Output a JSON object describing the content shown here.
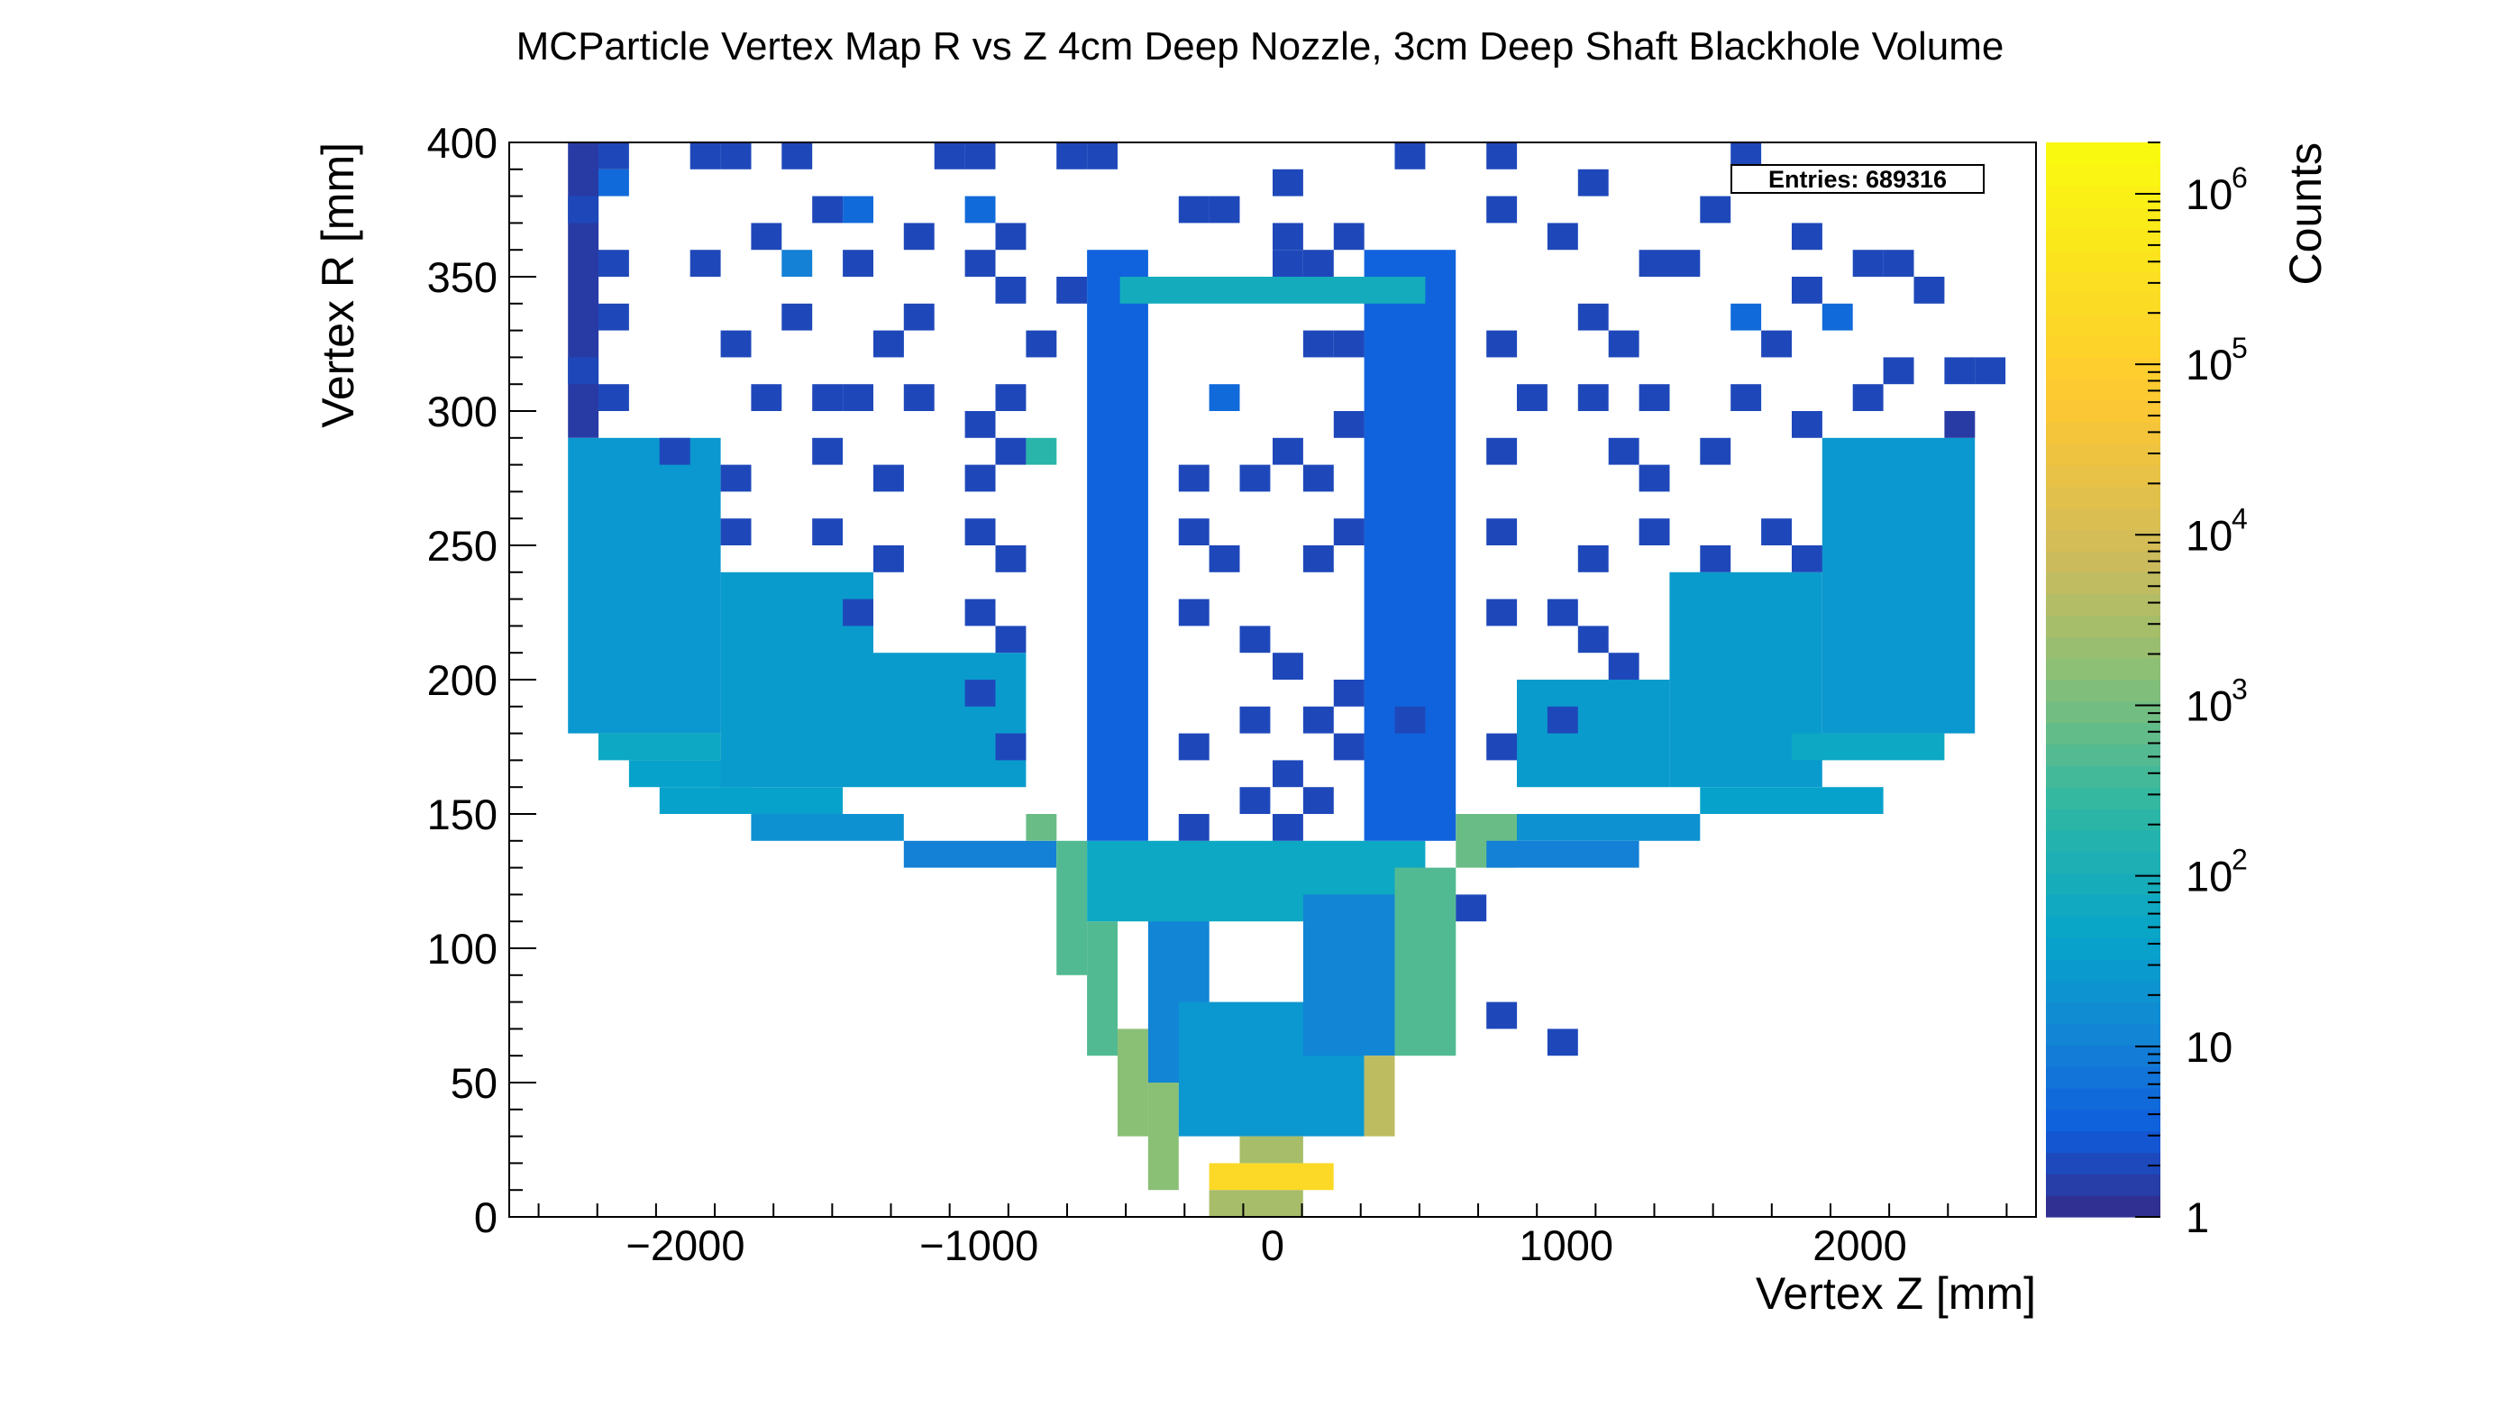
{
  "chart_data": {
    "type": "heatmap",
    "title": "MCParticle Vertex Map R vs Z 4cm Deep Nozzle, 3cm Deep Shaft Blackhole Volume",
    "xlabel": "Vertex Z [mm]",
    "ylabel": "Vertex R [mm]",
    "colorbar_label": "Counts",
    "colorbar_scale": "log",
    "zlim": [
      1,
      2000000
    ],
    "colorbar_ticks": [
      {
        "value": 1,
        "label": "1"
      },
      {
        "value": 10,
        "label": "10"
      },
      {
        "value": 100,
        "label": "10",
        "exp": "2"
      },
      {
        "value": 1000,
        "label": "10",
        "exp": "3"
      },
      {
        "value": 10000,
        "label": "10",
        "exp": "4"
      },
      {
        "value": 100000,
        "label": "10",
        "exp": "5"
      },
      {
        "value": 1000000,
        "label": "10",
        "exp": "6"
      }
    ],
    "xlim": [
      -2600,
      2600
    ],
    "ylim": [
      0,
      400
    ],
    "xticks": [
      {
        "value": -2000,
        "label": "−2000"
      },
      {
        "value": -1000,
        "label": "−1000"
      },
      {
        "value": 0,
        "label": "0"
      },
      {
        "value": 1000,
        "label": "1000"
      },
      {
        "value": 2000,
        "label": "2000"
      }
    ],
    "yticks": [
      {
        "value": 0,
        "label": "0"
      },
      {
        "value": 50,
        "label": "50"
      },
      {
        "value": 100,
        "label": "100"
      },
      {
        "value": 150,
        "label": "150"
      },
      {
        "value": 200,
        "label": "200"
      },
      {
        "value": 250,
        "label": "250"
      },
      {
        "value": 300,
        "label": "300"
      },
      {
        "value": 350,
        "label": "350"
      },
      {
        "value": 400,
        "label": "400"
      }
    ],
    "stats": {
      "label": "Entries: 689316",
      "entries": 689316
    },
    "bin_width_z": 104,
    "bin_height_r": 10,
    "grid": false,
    "regions": [
      {
        "z": [
          -2400,
          -2296
        ],
        "r": [
          290,
          400
        ],
        "count": 1.5
      },
      {
        "z": [
          -2400,
          -1880
        ],
        "r": [
          180,
          290
        ],
        "count": 25
      },
      {
        "z": [
          -2296,
          -1880
        ],
        "r": [
          170,
          180
        ],
        "count": 60
      },
      {
        "z": [
          -2192,
          -1776
        ],
        "r": [
          160,
          170
        ],
        "count": 40
      },
      {
        "z": [
          -2088,
          -1464
        ],
        "r": [
          150,
          160
        ],
        "count": 40
      },
      {
        "z": [
          -1880,
          -1360
        ],
        "r": [
          160,
          240
        ],
        "count": 30
      },
      {
        "z": [
          -1776,
          -1256
        ],
        "r": [
          140,
          150
        ],
        "count": 20
      },
      {
        "z": [
          -1360,
          -840
        ],
        "r": [
          160,
          210
        ],
        "count": 30
      },
      {
        "z": [
          -1256,
          -736
        ],
        "r": [
          130,
          140
        ],
        "count": 10
      },
      {
        "z": [
          -840,
          -736
        ],
        "r": [
          140,
          150
        ],
        "count": 800
      },
      {
        "z": [
          -736,
          -632
        ],
        "r": [
          90,
          140
        ],
        "count": 500
      },
      {
        "z": [
          -632,
          -528
        ],
        "r": [
          60,
          110
        ],
        "count": 500
      },
      {
        "z": [
          -528,
          -424
        ],
        "r": [
          30,
          70
        ],
        "count": 1500
      },
      {
        "z": [
          -424,
          -320
        ],
        "r": [
          10,
          50
        ],
        "count": 1500
      },
      {
        "z": [
          -424,
          -216
        ],
        "r": [
          50,
          120
        ],
        "count": 12
      },
      {
        "z": [
          -632,
          520
        ],
        "r": [
          110,
          140
        ],
        "count": 60
      },
      {
        "z": [
          -320,
          312
        ],
        "r": [
          30,
          80
        ],
        "count": 25
      },
      {
        "z": [
          -216,
          208
        ],
        "r": [
          10,
          20
        ],
        "count": 200000
      },
      {
        "z": [
          -216,
          104
        ],
        "r": [
          0,
          10
        ],
        "count": 3000
      },
      {
        "z": [
          -112,
          104
        ],
        "r": [
          20,
          30
        ],
        "count": 3000
      },
      {
        "z": [
          104,
          416
        ],
        "r": [
          60,
          120
        ],
        "count": 12
      },
      {
        "z": [
          312,
          416
        ],
        "r": [
          30,
          60
        ],
        "count": 5000
      },
      {
        "z": [
          416,
          624
        ],
        "r": [
          60,
          130
        ],
        "count": 500
      },
      {
        "z": [
          624,
          832
        ],
        "r": [
          130,
          150
        ],
        "count": 800
      },
      {
        "z": [
          728,
          1248
        ],
        "r": [
          130,
          140
        ],
        "count": 10
      },
      {
        "z": [
          832,
          1456
        ],
        "r": [
          140,
          150
        ],
        "count": 20
      },
      {
        "z": [
          832,
          1352
        ],
        "r": [
          160,
          200
        ],
        "count": 30
      },
      {
        "z": [
          1352,
          1872
        ],
        "r": [
          160,
          240
        ],
        "count": 30
      },
      {
        "z": [
          1456,
          2080
        ],
        "r": [
          150,
          160
        ],
        "count": 40
      },
      {
        "z": [
          1768,
          2288
        ],
        "r": [
          170,
          180
        ],
        "count": 60
      },
      {
        "z": [
          1872,
          2392
        ],
        "r": [
          180,
          290
        ],
        "count": 25
      },
      {
        "z": [
          2288,
          2392
        ],
        "r": [
          290,
          300
        ],
        "count": 1.5
      },
      {
        "z": [
          -632,
          -424
        ],
        "r": [
          140,
          360
        ],
        "count": 4
      },
      {
        "z": [
          312,
          624
        ],
        "r": [
          140,
          360
        ],
        "count": 4
      },
      {
        "z": [
          -520,
          520
        ],
        "r": [
          340,
          350
        ],
        "count": 80
      },
      {
        "z": [
          -2296,
          -2192
        ],
        "r": [
          380,
          390
        ],
        "count": 5
      },
      {
        "z": [
          -1672,
          -1568
        ],
        "r": [
          350,
          360
        ],
        "count": 10
      },
      {
        "z": [
          -1464,
          -1360
        ],
        "r": [
          370,
          380
        ],
        "count": 5
      },
      {
        "z": [
          -1048,
          -944
        ],
        "r": [
          370,
          380
        ],
        "count": 5
      },
      {
        "z": [
          -840,
          -736
        ],
        "r": [
          280,
          290
        ],
        "count": 200
      },
      {
        "z": [
          -216,
          -112
        ],
        "r": [
          300,
          310
        ],
        "count": 5
      },
      {
        "z": [
          1560,
          1664
        ],
        "r": [
          330,
          340
        ],
        "count": 5
      },
      {
        "z": [
          1872,
          1976
        ],
        "r": [
          330,
          340
        ],
        "count": 5
      }
    ],
    "sparse_cells": [
      {
        "z": -2296,
        "r": 390
      },
      {
        "z": -1984,
        "r": 390
      },
      {
        "z": -1880,
        "r": 390
      },
      {
        "z": -1672,
        "r": 390
      },
      {
        "z": -1152,
        "r": 390
      },
      {
        "z": -1048,
        "r": 390
      },
      {
        "z": -736,
        "r": 390
      },
      {
        "z": -632,
        "r": 390
      },
      {
        "z": 0,
        "r": 380
      },
      {
        "z": 416,
        "r": 390
      },
      {
        "z": 728,
        "r": 390
      },
      {
        "z": 1040,
        "r": 380
      },
      {
        "z": 1560,
        "r": 390
      },
      {
        "z": -2400,
        "r": 370
      },
      {
        "z": -1776,
        "r": 360
      },
      {
        "z": -1568,
        "r": 370
      },
      {
        "z": -1256,
        "r": 360
      },
      {
        "z": -944,
        "r": 360
      },
      {
        "z": -320,
        "r": 370
      },
      {
        "z": -216,
        "r": 370
      },
      {
        "z": 0,
        "r": 360
      },
      {
        "z": 208,
        "r": 360
      },
      {
        "z": 728,
        "r": 370
      },
      {
        "z": 936,
        "r": 360
      },
      {
        "z": 1456,
        "r": 370
      },
      {
        "z": 1768,
        "r": 360
      },
      {
        "z": -2296,
        "r": 350
      },
      {
        "z": -1984,
        "r": 350
      },
      {
        "z": -1464,
        "r": 350
      },
      {
        "z": -1048,
        "r": 350
      },
      {
        "z": -944,
        "r": 340
      },
      {
        "z": -736,
        "r": 340
      },
      {
        "z": 0,
        "r": 350
      },
      {
        "z": 104,
        "r": 350
      },
      {
        "z": 1248,
        "r": 350
      },
      {
        "z": 1352,
        "r": 350
      },
      {
        "z": 1768,
        "r": 340
      },
      {
        "z": 1976,
        "r": 350
      },
      {
        "z": 2080,
        "r": 350
      },
      {
        "z": 2184,
        "r": 340
      },
      {
        "z": -2296,
        "r": 330
      },
      {
        "z": -1880,
        "r": 320
      },
      {
        "z": -1672,
        "r": 330
      },
      {
        "z": -1360,
        "r": 320
      },
      {
        "z": -1256,
        "r": 330
      },
      {
        "z": -840,
        "r": 320
      },
      {
        "z": 104,
        "r": 320
      },
      {
        "z": 208,
        "r": 320
      },
      {
        "z": 728,
        "r": 320
      },
      {
        "z": 1040,
        "r": 330
      },
      {
        "z": 1144,
        "r": 320
      },
      {
        "z": 1664,
        "r": 320
      },
      {
        "z": 2080,
        "r": 310
      },
      {
        "z": 2288,
        "r": 310
      },
      {
        "z": 2392,
        "r": 310
      },
      {
        "z": -2400,
        "r": 310
      },
      {
        "z": -2296,
        "r": 300
      },
      {
        "z": -1776,
        "r": 300
      },
      {
        "z": -1568,
        "r": 300
      },
      {
        "z": -1464,
        "r": 300
      },
      {
        "z": -1256,
        "r": 300
      },
      {
        "z": -1048,
        "r": 290
      },
      {
        "z": -944,
        "r": 300
      },
      {
        "z": 208,
        "r": 290
      },
      {
        "z": 832,
        "r": 300
      },
      {
        "z": 1040,
        "r": 300
      },
      {
        "z": 1248,
        "r": 300
      },
      {
        "z": 1560,
        "r": 300
      },
      {
        "z": 1768,
        "r": 290
      },
      {
        "z": 1976,
        "r": 300
      },
      {
        "z": -2088,
        "r": 280
      },
      {
        "z": -1880,
        "r": 270
      },
      {
        "z": -1568,
        "r": 280
      },
      {
        "z": -1360,
        "r": 270
      },
      {
        "z": -1048,
        "r": 270
      },
      {
        "z": -944,
        "r": 280
      },
      {
        "z": -320,
        "r": 270
      },
      {
        "z": -112,
        "r": 270
      },
      {
        "z": 0,
        "r": 280
      },
      {
        "z": 104,
        "r": 270
      },
      {
        "z": 728,
        "r": 280
      },
      {
        "z": 1144,
        "r": 280
      },
      {
        "z": 1248,
        "r": 270
      },
      {
        "z": 1456,
        "r": 280
      },
      {
        "z": -1880,
        "r": 250
      },
      {
        "z": -1568,
        "r": 250
      },
      {
        "z": -1360,
        "r": 240
      },
      {
        "z": -1048,
        "r": 250
      },
      {
        "z": -944,
        "r": 240
      },
      {
        "z": -320,
        "r": 250
      },
      {
        "z": -216,
        "r": 240
      },
      {
        "z": 104,
        "r": 240
      },
      {
        "z": 208,
        "r": 250
      },
      {
        "z": 728,
        "r": 250
      },
      {
        "z": 1040,
        "r": 240
      },
      {
        "z": 1248,
        "r": 250
      },
      {
        "z": 1456,
        "r": 240
      },
      {
        "z": 1664,
        "r": 250
      },
      {
        "z": 1768,
        "r": 240
      },
      {
        "z": -1464,
        "r": 220
      },
      {
        "z": -1048,
        "r": 220
      },
      {
        "z": -944,
        "r": 210
      },
      {
        "z": -320,
        "r": 220
      },
      {
        "z": -112,
        "r": 210
      },
      {
        "z": 0,
        "r": 200
      },
      {
        "z": 104,
        "r": 180
      },
      {
        "z": 208,
        "r": 190
      },
      {
        "z": 728,
        "r": 220
      },
      {
        "z": 936,
        "r": 220
      },
      {
        "z": 1040,
        "r": 210
      },
      {
        "z": 1144,
        "r": 200
      },
      {
        "z": -1048,
        "r": 190
      },
      {
        "z": -944,
        "r": 170
      },
      {
        "z": -320,
        "r": 170
      },
      {
        "z": -112,
        "r": 180
      },
      {
        "z": 0,
        "r": 160
      },
      {
        "z": 208,
        "r": 170
      },
      {
        "z": 416,
        "r": 180
      },
      {
        "z": 728,
        "r": 170
      },
      {
        "z": 936,
        "r": 180
      },
      {
        "z": -320,
        "r": 140
      },
      {
        "z": -112,
        "r": 150
      },
      {
        "z": 0,
        "r": 140
      },
      {
        "z": 104,
        "r": 150
      },
      {
        "z": 624,
        "r": 110
      },
      {
        "z": 728,
        "r": 70
      },
      {
        "z": 936,
        "r": 60
      }
    ]
  }
}
